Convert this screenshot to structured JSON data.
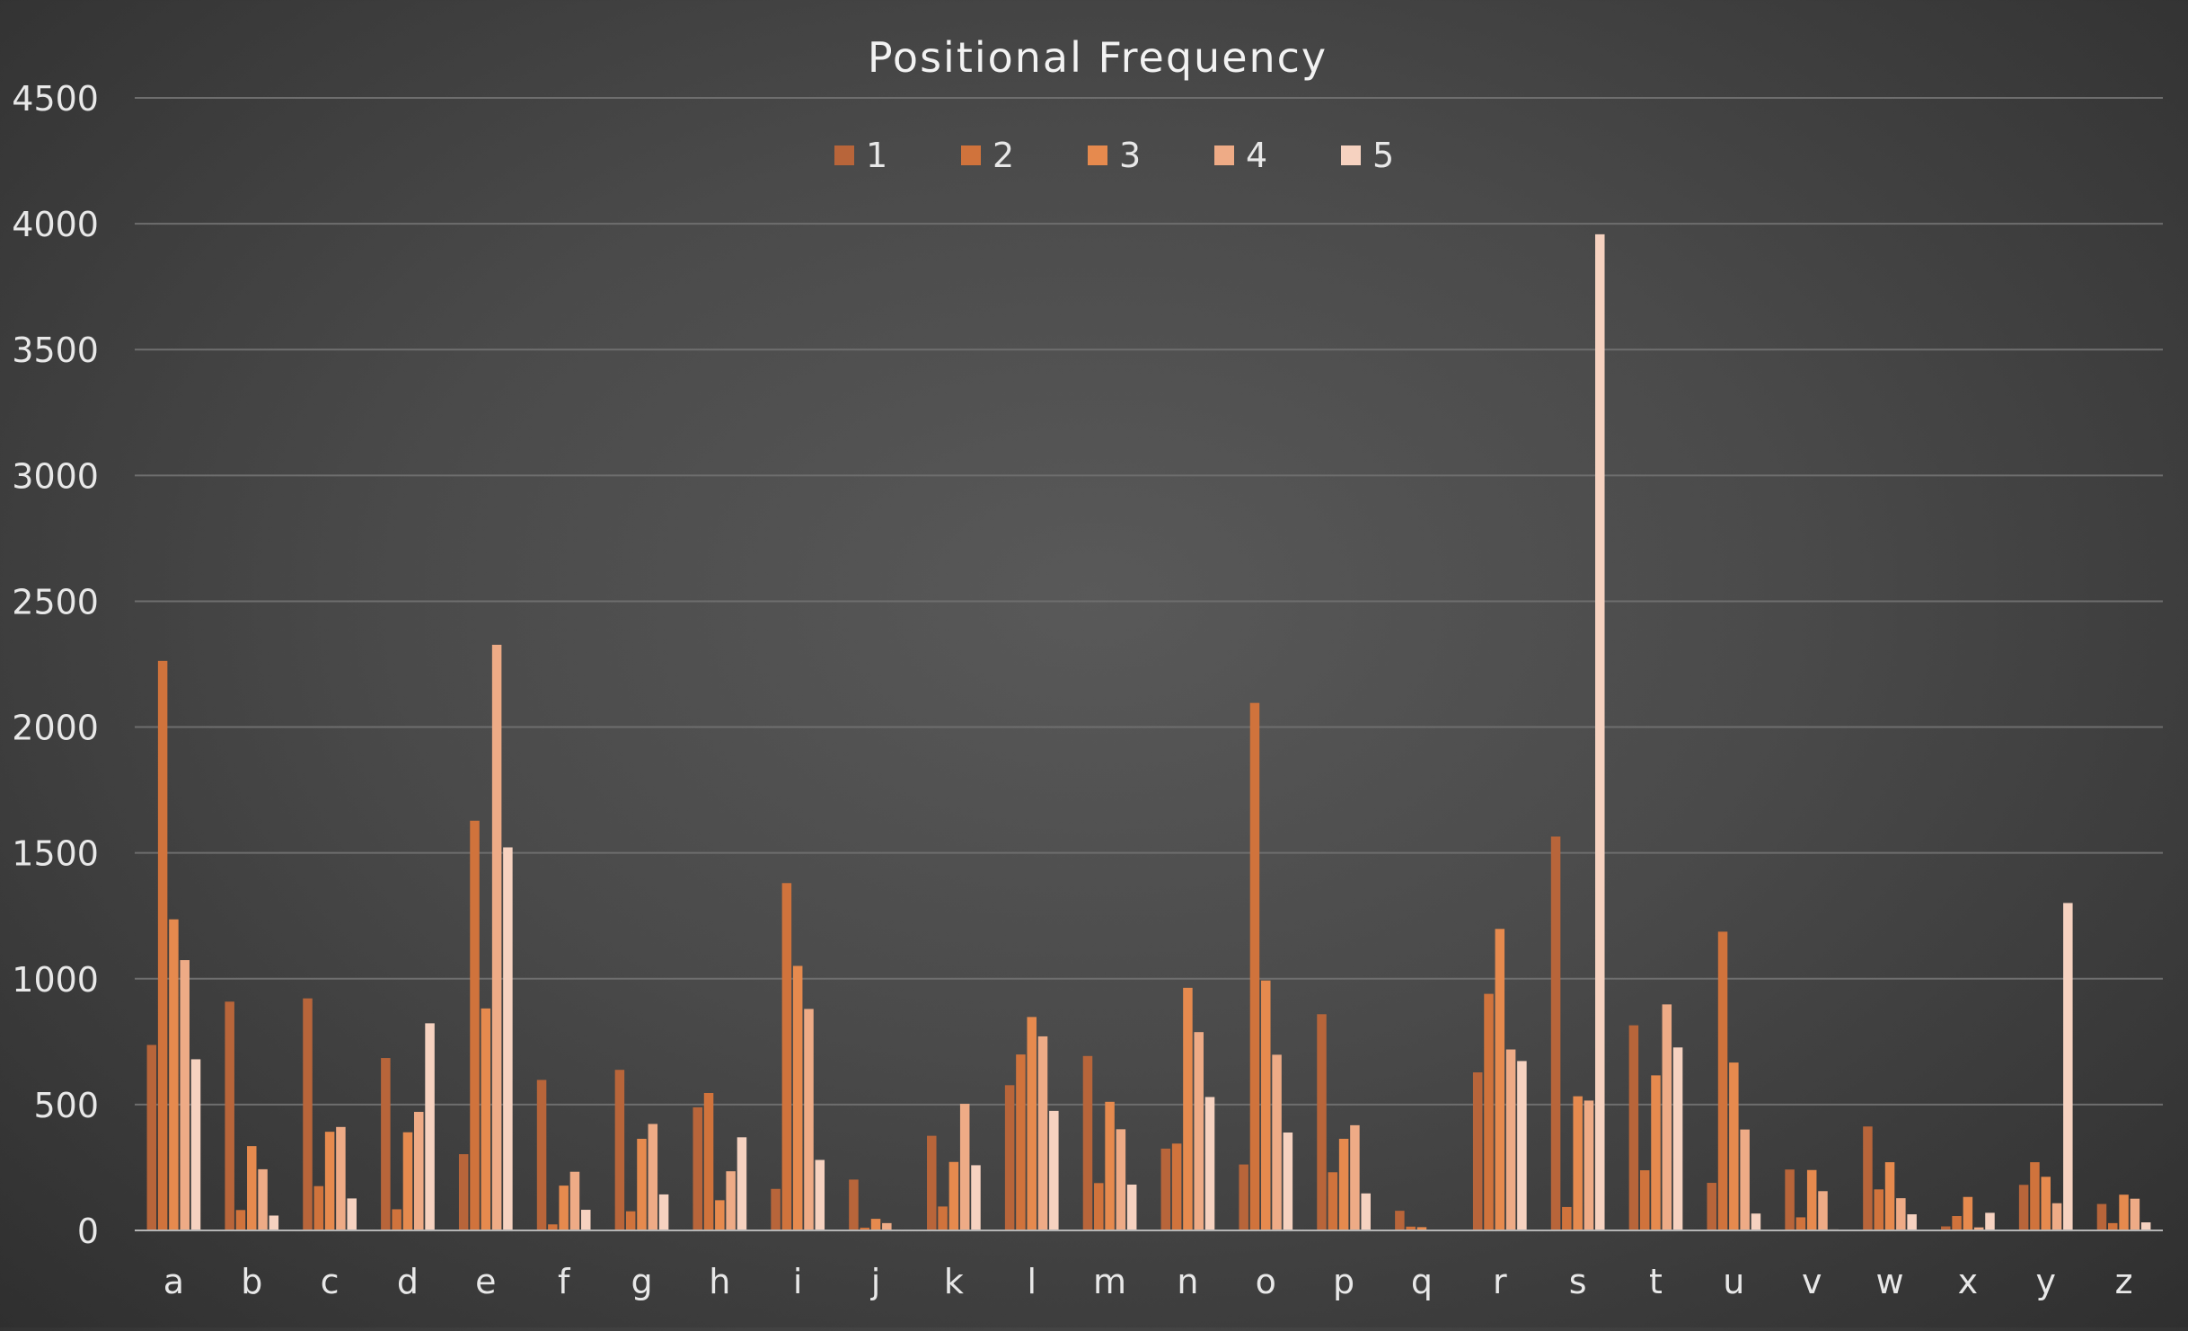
{
  "chart_data": {
    "type": "bar",
    "title": "Positional Frequency",
    "xlabel": "",
    "ylabel": "",
    "ylim": [
      0,
      4500
    ],
    "yticks": [
      0,
      500,
      1000,
      1500,
      2000,
      2500,
      3000,
      3500,
      4000,
      4500
    ],
    "grid": true,
    "legend_position": "top",
    "categories": [
      "a",
      "b",
      "c",
      "d",
      "e",
      "f",
      "g",
      "h",
      "i",
      "j",
      "k",
      "l",
      "m",
      "n",
      "o",
      "p",
      "q",
      "r",
      "s",
      "t",
      "u",
      "v",
      "w",
      "x",
      "y",
      "z"
    ],
    "series": [
      {
        "name": "1",
        "color": "#b8653a",
        "values": [
          737,
          909,
          922,
          685,
          303,
          598,
          638,
          489,
          165,
          202,
          376,
          577,
          693,
          325,
          262,
          859,
          78,
          628,
          1565,
          815,
          189,
          242,
          413,
          16,
          181,
          105
        ]
      },
      {
        "name": "2",
        "color": "#d0733c",
        "values": [
          2263,
          81,
          176,
          84,
          1628,
          24,
          76,
          546,
          1380,
          11,
          95,
          699,
          188,
          345,
          2096,
          231,
          15,
          940,
          93,
          239,
          1187,
          52,
          163,
          57,
          271,
          29
        ]
      },
      {
        "name": "3",
        "color": "#e68a4e",
        "values": [
          1236,
          335,
          392,
          390,
          882,
          178,
          364,
          120,
          1051,
          46,
          272,
          848,
          511,
          964,
          993,
          364,
          13,
          1198,
          533,
          616,
          667,
          240,
          271,
          133,
          213,
          142
        ]
      },
      {
        "name": "4",
        "color": "#eeab86",
        "values": [
          1074,
          243,
          411,
          471,
          2327,
          233,
          423,
          235,
          880,
          29,
          503,
          771,
          402,
          788,
          698,
          418,
          2,
          719,
          516,
          898,
          401,
          156,
          128,
          12,
          108,
          126
        ]
      },
      {
        "name": "5",
        "color": "#f6d2c0",
        "values": [
          680,
          59,
          127,
          823,
          1522,
          82,
          143,
          370,
          280,
          2,
          259,
          475,
          182,
          530,
          389,
          147,
          0,
          673,
          3958,
          727,
          67,
          4,
          64,
          70,
          1301,
          32
        ]
      }
    ]
  }
}
